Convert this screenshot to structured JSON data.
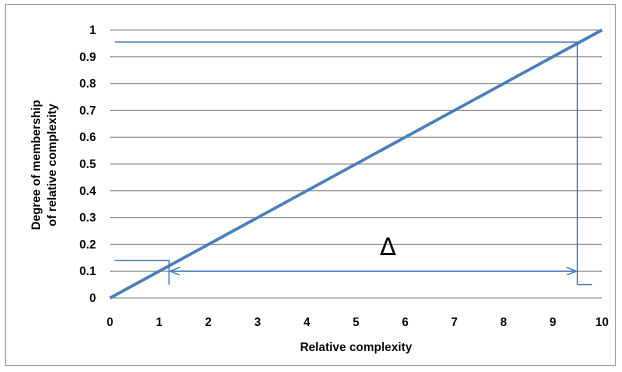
{
  "chart_data": {
    "type": "line",
    "title": "",
    "xlabel": "Relative complexity",
    "ylabel_line1": "Degree of membership",
    "ylabel_line2": "of relative complexity",
    "xlim": [
      0,
      10
    ],
    "ylim": [
      0,
      1
    ],
    "x_ticks": [
      "0",
      "1",
      "2",
      "3",
      "4",
      "5",
      "6",
      "7",
      "8",
      "9",
      "10"
    ],
    "y_ticks": [
      "0",
      "0.1",
      "0.2",
      "0.3",
      "0.4",
      "0.5",
      "0.6",
      "0.7",
      "0.8",
      "0.9",
      "1"
    ],
    "grid": "horizontal",
    "legend": "none",
    "series": [
      {
        "x": [
          0,
          10
        ],
        "y": [
          0,
          1
        ],
        "color": "#4a7ebb"
      }
    ],
    "annotations": {
      "delta_symbol": "Δ",
      "low_point": {
        "x": 1.2,
        "y": 0.14
      },
      "high_point": {
        "x": 9.5,
        "y": 0.955
      },
      "arrow_y": 0.1,
      "low_guide_x_start": 0.1,
      "high_guide_x_start": 0.1,
      "high_drop_x_end": 9.8,
      "high_drop_y_end": 0.05
    },
    "colors": {
      "line": "#4a7ebb",
      "grid": "#868686",
      "annotation": "#4a7ebb",
      "text": "#000000"
    }
  }
}
